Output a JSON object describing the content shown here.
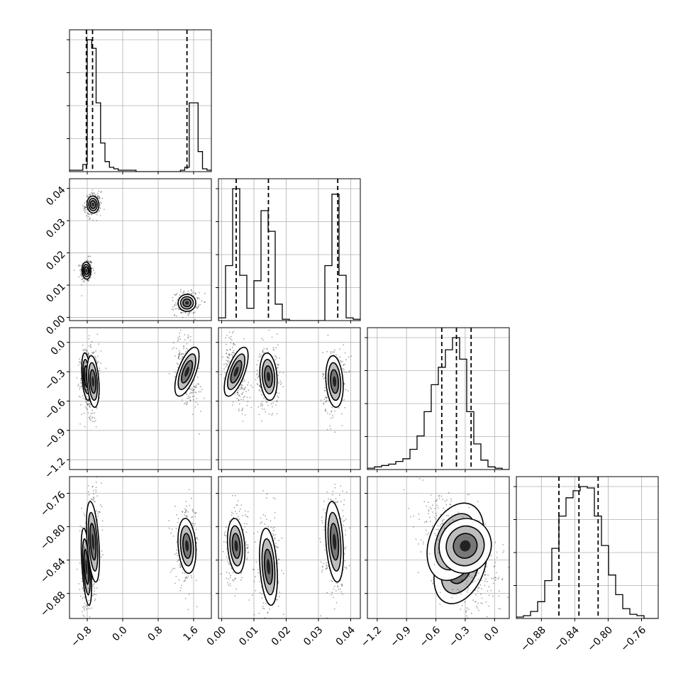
{
  "chart_data": {
    "type": "corner",
    "title": "",
    "grid": true,
    "parameters": [
      {
        "range": [
          -1.2,
          2.0
        ],
        "ticks": [
          -0.8,
          0.0,
          0.8,
          1.6
        ],
        "tick_labels": [
          "−0.8",
          "0.0",
          "0.8",
          "1.6"
        ],
        "quantiles": [
          -0.82,
          -0.68,
          1.45
        ],
        "histogram": {
          "bin_edges": [
            -1.2,
            -1.1,
            -1.0,
            -0.9,
            -0.8,
            -0.7,
            -0.6,
            -0.5,
            -0.4,
            -0.3,
            -0.2,
            -0.1,
            0.0,
            0.1,
            0.2,
            0.3,
            0.4,
            0.5,
            0.6,
            0.7,
            0.8,
            0.9,
            1.0,
            1.1,
            1.2,
            1.3,
            1.4,
            1.5,
            1.6,
            1.7,
            1.8,
            1.9,
            2.0
          ],
          "counts": [
            0.01,
            0.01,
            0.01,
            0.05,
            0.92,
            0.86,
            0.48,
            0.2,
            0.07,
            0.03,
            0.02,
            0.01,
            0.01,
            0.01,
            0.01,
            0.0,
            0.0,
            0.0,
            0.0,
            0.0,
            0.0,
            0.0,
            0.0,
            0.0,
            0.0,
            0.01,
            0.03,
            0.48,
            0.48,
            0.14,
            0.02,
            0.01
          ]
        }
      },
      {
        "range": [
          -0.001,
          0.043
        ],
        "ticks": [
          0.0,
          0.01,
          0.02,
          0.03,
          0.04
        ],
        "tick_labels": [
          "0.00",
          "0.01",
          "0.02",
          "0.03",
          "0.04"
        ],
        "quantiles": [
          0.0045,
          0.0145,
          0.036
        ],
        "histogram": {
          "bin_edges": [
            -0.001,
            0.0012,
            0.0034,
            0.0056,
            0.0078,
            0.01,
            0.0122,
            0.0144,
            0.0166,
            0.0188,
            0.021,
            0.0232,
            0.0254,
            0.0276,
            0.0298,
            0.032,
            0.0342,
            0.0364,
            0.0386,
            0.0408,
            0.043
          ],
          "counts": [
            0.02,
            0.4,
            0.96,
            0.33,
            0.09,
            0.29,
            0.8,
            0.65,
            0.12,
            0.01,
            0.0,
            0.0,
            0.0,
            0.0,
            0.0,
            0.4,
            0.92,
            0.33,
            0.02,
            0.01
          ]
        }
      },
      {
        "range": [
          -1.3,
          0.15
        ],
        "ticks": [
          -1.2,
          -0.9,
          -0.6,
          -0.3,
          0.0
        ],
        "tick_labels": [
          "−1.2",
          "−0.9",
          "−0.6",
          "−0.3",
          "0.0"
        ],
        "quantiles": [
          -0.54,
          -0.39,
          -0.24
        ],
        "histogram": {
          "bin_edges": [
            -1.3,
            -1.2275,
            -1.155,
            -1.0825,
            -1.01,
            -0.9375,
            -0.865,
            -0.7925,
            -0.72,
            -0.6475,
            -0.575,
            -0.5025,
            -0.43,
            -0.3575,
            -0.285,
            -0.2125,
            -0.14,
            -0.0675,
            0.005,
            0.0775,
            0.15
          ],
          "counts": [
            0.01,
            0.02,
            0.03,
            0.04,
            0.06,
            0.08,
            0.15,
            0.25,
            0.43,
            0.63,
            0.76,
            0.89,
            0.98,
            0.82,
            0.43,
            0.19,
            0.07,
            0.02,
            0.01,
            0.0
          ]
        }
      },
      {
        "range": [
          -0.91,
          -0.74
        ],
        "ticks": [
          -0.88,
          -0.84,
          -0.8,
          -0.76
        ],
        "tick_labels": [
          "−0.88",
          "−0.84",
          "−0.80",
          "−0.76"
        ],
        "quantiles": [
          -0.859,
          -0.835,
          -0.812
        ],
        "histogram": {
          "bin_edges": [
            -0.91,
            -0.9015,
            -0.893,
            -0.8845,
            -0.876,
            -0.8675,
            -0.859,
            -0.8505,
            -0.842,
            -0.8335,
            -0.825,
            -0.8165,
            -0.808,
            -0.7995,
            -0.791,
            -0.7825,
            -0.774,
            -0.7655,
            -0.757,
            -0.7485,
            -0.74
          ],
          "counts": [
            0.01,
            0.02,
            0.05,
            0.12,
            0.27,
            0.5,
            0.73,
            0.86,
            0.91,
            0.94,
            0.93,
            0.73,
            0.52,
            0.31,
            0.17,
            0.07,
            0.03,
            0.02,
            0.0,
            0.0
          ]
        }
      }
    ],
    "clusters": [
      {
        "mean": [
          -0.82,
          0.0145,
          -0.35,
          -0.848
        ],
        "std": [
          0.045,
          0.0012,
          0.11,
          0.021
        ]
      },
      {
        "mean": [
          -0.67,
          0.035,
          -0.4,
          -0.818
        ],
        "std": [
          0.06,
          0.0012,
          0.12,
          0.022
        ]
      },
      {
        "mean": [
          1.45,
          0.0045,
          -0.3,
          -0.823
        ],
        "std": [
          0.09,
          0.0012,
          0.12,
          0.015
        ]
      }
    ],
    "contour_levels_sigma": [
      1.0,
      1.6,
      2.2
    ]
  }
}
